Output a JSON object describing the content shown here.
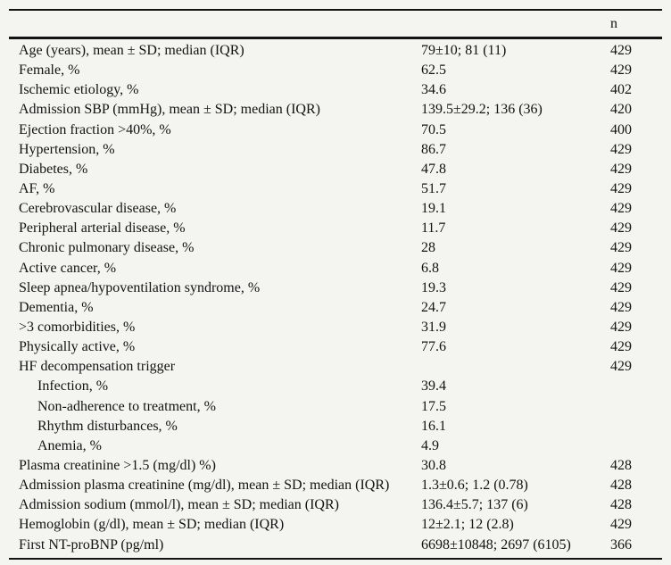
{
  "chart_data": {
    "type": "table",
    "title": "Baseline characteristics table",
    "header": {
      "label": "",
      "value": "",
      "n": "n"
    },
    "rows": [
      {
        "label": "Age (years), mean ± SD; median (IQR)",
        "value": "79±10; 81 (11)",
        "n": "429",
        "indent": false
      },
      {
        "label": "Female, %",
        "value": "62.5",
        "n": "429",
        "indent": false
      },
      {
        "label": "Ischemic etiology, %",
        "value": "34.6",
        "n": "402",
        "indent": false
      },
      {
        "label": "Admission SBP (mmHg), mean ± SD; median (IQR)",
        "value": "139.5±29.2; 136 (36)",
        "n": "420",
        "indent": false
      },
      {
        "label": "Ejection fraction >40%, %",
        "value": "70.5",
        "n": "400",
        "indent": false
      },
      {
        "label": "Hypertension, %",
        "value": "86.7",
        "n": "429",
        "indent": false
      },
      {
        "label": "Diabetes, %",
        "value": "47.8",
        "n": "429",
        "indent": false
      },
      {
        "label": "AF, %",
        "value": "51.7",
        "n": "429",
        "indent": false
      },
      {
        "label": "Cerebrovascular disease, %",
        "value": "19.1",
        "n": "429",
        "indent": false
      },
      {
        "label": "Peripheral arterial disease, %",
        "value": "11.7",
        "n": "429",
        "indent": false
      },
      {
        "label": "Chronic pulmonary disease, %",
        "value": "28",
        "n": "429",
        "indent": false
      },
      {
        "label": "Active cancer, %",
        "value": "6.8",
        "n": "429",
        "indent": false
      },
      {
        "label": "Sleep apnea/hypoventilation syndrome, %",
        "value": "19.3",
        "n": "429",
        "indent": false
      },
      {
        "label": "Dementia, %",
        "value": "24.7",
        "n": "429",
        "indent": false
      },
      {
        "label": ">3 comorbidities, %",
        "value": "31.9",
        "n": "429",
        "indent": false
      },
      {
        "label": "Physically active, %",
        "value": "77.6",
        "n": "429",
        "indent": false
      },
      {
        "label": "HF decompensation trigger",
        "value": "",
        "n": "429",
        "indent": false
      },
      {
        "label": "Infection, %",
        "value": "39.4",
        "n": "",
        "indent": true
      },
      {
        "label": "Non-adherence to treatment, %",
        "value": "17.5",
        "n": "",
        "indent": true
      },
      {
        "label": "Rhythm disturbances, %",
        "value": "16.1",
        "n": "",
        "indent": true
      },
      {
        "label": "Anemia, %",
        "value": "4.9",
        "n": "",
        "indent": true
      },
      {
        "label": "Plasma creatinine >1.5 (mg/dl) %)",
        "value": "30.8",
        "n": "428",
        "indent": false
      },
      {
        "label": "Admission plasma creatinine (mg/dl), mean ± SD; median (IQR)",
        "value": "1.3±0.6; 1.2 (0.78)",
        "n": "428",
        "indent": false
      },
      {
        "label": "Admission sodium (mmol/l), mean ± SD; median (IQR)",
        "value": "136.4±5.7; 137 (6)",
        "n": "428",
        "indent": false
      },
      {
        "label": "Hemoglobin (g/dl), mean ± SD; median (IQR)",
        "value": "12±2.1; 12 (2.8)",
        "n": "429",
        "indent": false
      },
      {
        "label": "First NT-proBNP (pg/ml)",
        "value": "6698±10848; 2697 (6105)",
        "n": "366",
        "indent": false
      }
    ]
  },
  "colors": {
    "background": "#f4f4f1",
    "text": "#131313",
    "rule": "#131313"
  }
}
